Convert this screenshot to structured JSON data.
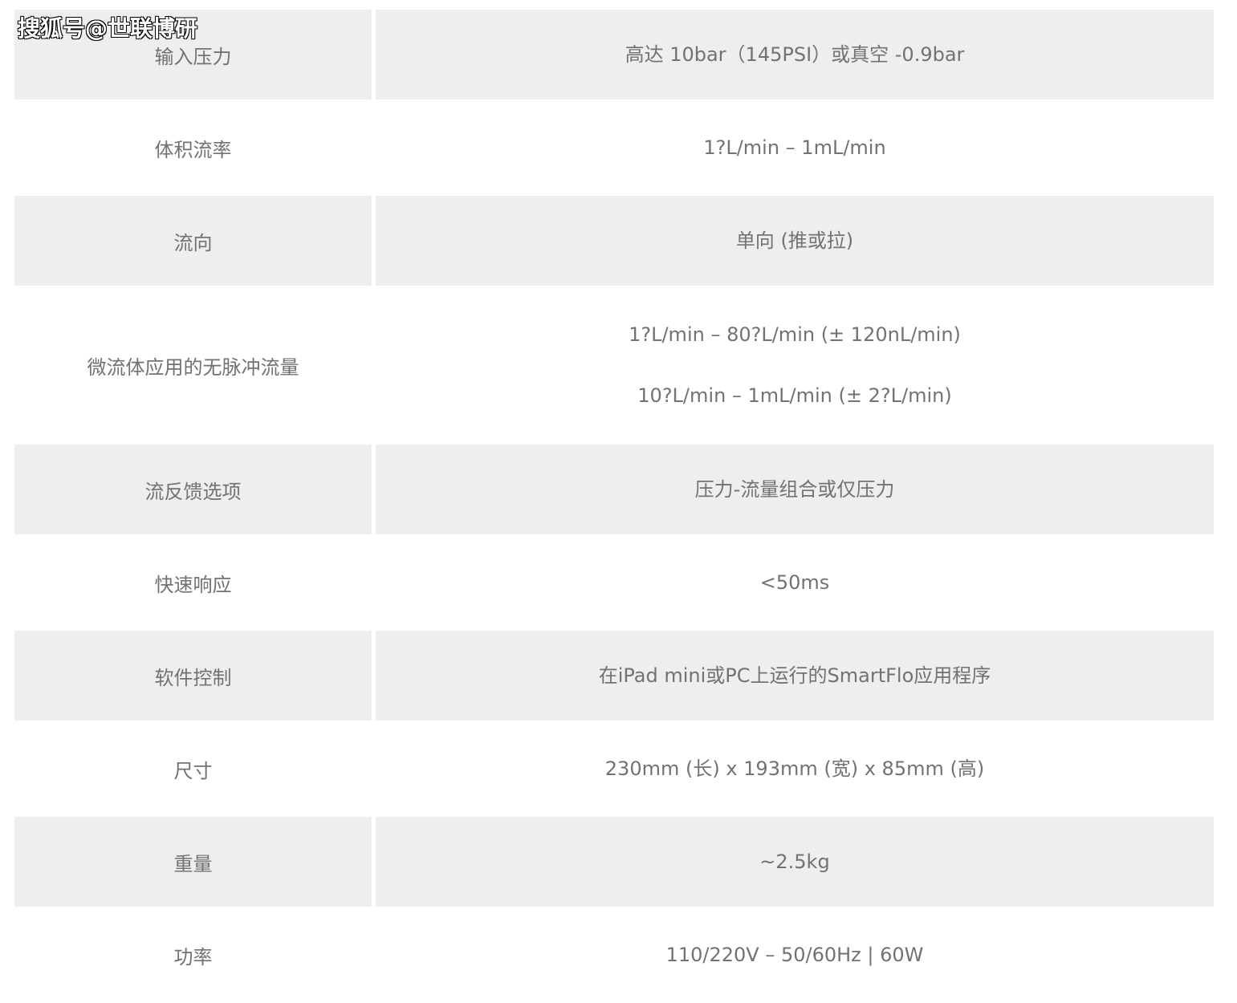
{
  "watermark": "搜狐号@世联博研",
  "rows": [
    {
      "label": "输入压力",
      "values": [
        "高达 10bar（145PSI）或真空 -0.9bar"
      ]
    },
    {
      "label": "体积流率",
      "values": [
        "1?L/min – 1mL/min"
      ]
    },
    {
      "label": "流向",
      "values": [
        "单向 (推或拉)"
      ]
    },
    {
      "label": "微流体应用的无脉冲流量",
      "values": [
        "1?L/min – 80?L/min (± 120nL/min)",
        "10?L/min – 1mL/min (± 2?L/min)"
      ]
    },
    {
      "label": "流反馈选项",
      "values": [
        "压力-流量组合或仅压力"
      ]
    },
    {
      "label": "快速响应",
      "values": [
        "<50ms"
      ]
    },
    {
      "label": "软件控制",
      "values": [
        "在iPad mini或PC上运行的SmartFlo应用程序"
      ]
    },
    {
      "label": "尺寸",
      "values": [
        "230mm (长) x 193mm (宽) x 85mm (高)"
      ]
    },
    {
      "label": "重量",
      "values": [
        "~2.5kg"
      ]
    },
    {
      "label": "功率",
      "values": [
        "110/220V – 50/60Hz | 60W"
      ]
    }
  ]
}
